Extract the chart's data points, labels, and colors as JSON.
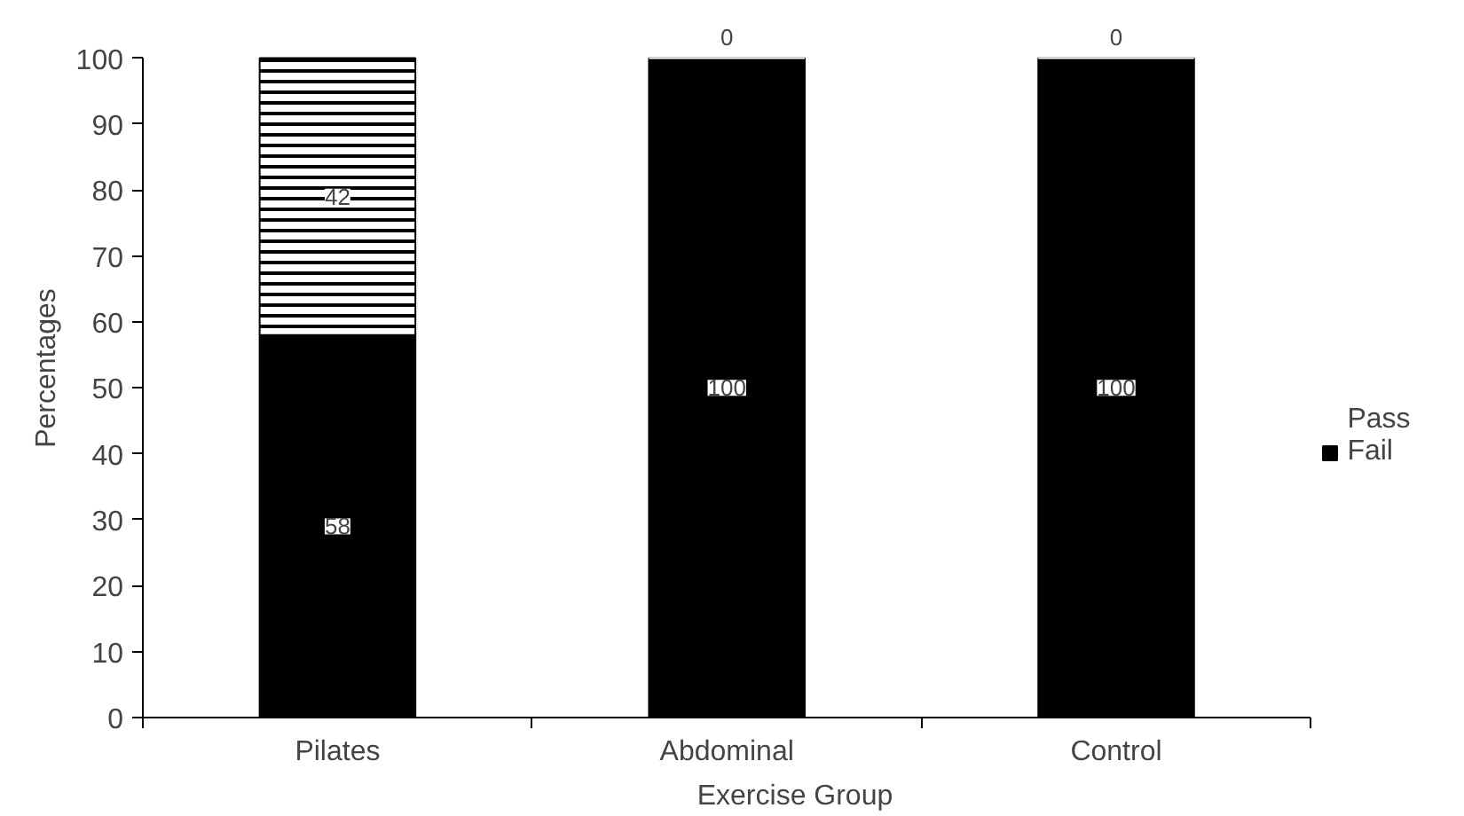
{
  "chart_data": {
    "type": "bar",
    "stacked": true,
    "xlabel": "Exercise Group",
    "ylabel": "Percentages",
    "categories": [
      "Pilates",
      "Abdominal",
      "Control"
    ],
    "series": [
      {
        "name": "Fail",
        "color": "#000000",
        "values": [
          58,
          100,
          100
        ]
      },
      {
        "name": "Pass",
        "color": "#ffffff",
        "values": [
          42,
          0,
          0
        ]
      }
    ],
    "ylim": [
      0,
      100
    ],
    "yticks": [
      0,
      10,
      20,
      30,
      40,
      50,
      60,
      70,
      80,
      90,
      100
    ],
    "grid": false,
    "legend": "right",
    "data_labels": true
  }
}
